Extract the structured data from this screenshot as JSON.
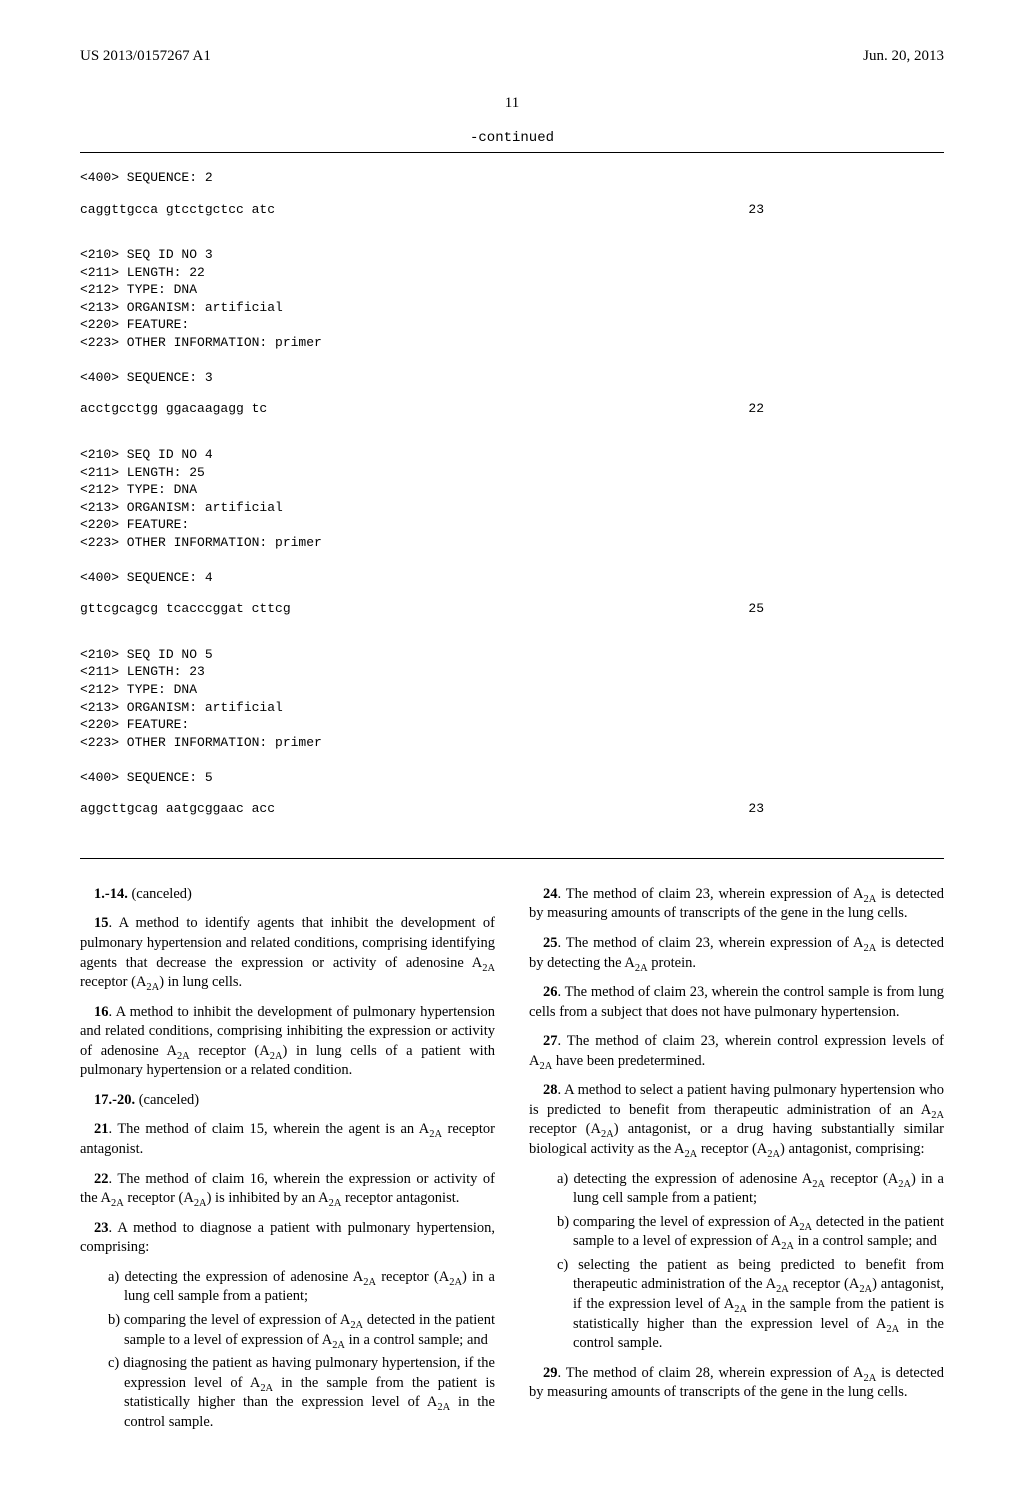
{
  "header": {
    "left": "US 2013/0157267 A1",
    "right": "Jun. 20, 2013"
  },
  "page_number": "11",
  "continued_label": "-continued",
  "sequences": [
    {
      "meta": [
        "<400> SEQUENCE: 2"
      ],
      "sequence": "caggttgcca gtcctgctcc atc",
      "length_num": "23"
    },
    {
      "meta": [
        "<210> SEQ ID NO 3",
        "<211> LENGTH: 22",
        "<212> TYPE: DNA",
        "<213> ORGANISM: artificial",
        "<220> FEATURE:",
        "<223> OTHER INFORMATION: primer",
        "",
        "<400> SEQUENCE: 3"
      ],
      "sequence": "acctgcctgg ggacaagagg tc",
      "length_num": "22"
    },
    {
      "meta": [
        "<210> SEQ ID NO 4",
        "<211> LENGTH: 25",
        "<212> TYPE: DNA",
        "<213> ORGANISM: artificial",
        "<220> FEATURE:",
        "<223> OTHER INFORMATION: primer",
        "",
        "<400> SEQUENCE: 4"
      ],
      "sequence": "gttcgcagcg tcacccggat cttcg",
      "length_num": "25"
    },
    {
      "meta": [
        "<210> SEQ ID NO 5",
        "<211> LENGTH: 23",
        "<212> TYPE: DNA",
        "<213> ORGANISM: artificial",
        "<220> FEATURE:",
        "<223> OTHER INFORMATION: primer",
        "",
        "<400> SEQUENCE: 5"
      ],
      "sequence": "aggcttgcag aatgcggaac acc",
      "length_num": "23"
    }
  ],
  "claims_left": [
    {
      "type": "claim",
      "num": "1.-14.",
      "text": " (canceled)"
    },
    {
      "type": "claim",
      "num": "15",
      "text": ". A method to identify agents that inhibit the development of pulmonary hypertension and related conditions, comprising identifying agents that decrease the expression or activity of adenosine A₂ₐ receptor (A₂ₐ) in lung cells."
    },
    {
      "type": "claim",
      "num": "16",
      "text": ". A method to inhibit the development of pulmonary hypertension and related conditions, comprising inhibiting the expression or activity of adenosine A₂ₐ receptor (A₂ₐ) in lung cells of a patient with pulmonary hypertension or a related condition."
    },
    {
      "type": "claim",
      "num": "17.-20.",
      "text": " (canceled)"
    },
    {
      "type": "claim",
      "num": "21",
      "text": ". The method of claim 15, wherein the agent is an A₂ₐ receptor antagonist."
    },
    {
      "type": "claim",
      "num": "22",
      "text": ". The method of claim 16, wherein the expression or activity of the A₂ₐ receptor (A₂ₐ) is inhibited by an A₂ₐ receptor antagonist."
    },
    {
      "type": "claim",
      "num": "23",
      "text": ". A method to diagnose a patient with pulmonary hypertension, comprising:"
    },
    {
      "type": "subitem",
      "label": "a)",
      "text": "detecting the expression of adenosine A₂ₐ receptor (A₂ₐ) in a lung cell sample from a patient;"
    },
    {
      "type": "subitem",
      "label": "b)",
      "text": "comparing the level of expression of A₂ₐ detected in the patient sample to a level of expression of A₂ₐ in a control sample; and"
    },
    {
      "type": "subitem",
      "label": "c)",
      "text": "diagnosing the patient as having pulmonary hypertension, if the expression level of A₂ₐ in the sample from the patient is statistically higher than the expression level of A₂ₐ in the control sample."
    }
  ],
  "claims_right": [
    {
      "type": "claim",
      "num": "24",
      "text": ". The method of claim 23, wherein expression of A₂ₐ is detected by measuring amounts of transcripts of the gene in the lung cells."
    },
    {
      "type": "claim",
      "num": "25",
      "text": ". The method of claim 23, wherein expression of A₂ₐ is detected by detecting the A₂ₐ protein."
    },
    {
      "type": "claim",
      "num": "26",
      "text": ". The method of claim 23, wherein the control sample is from lung cells from a subject that does not have pulmonary hypertension."
    },
    {
      "type": "claim",
      "num": "27",
      "text": ". The method of claim 23, wherein control expression levels of A₂ₐ have been predetermined."
    },
    {
      "type": "claim",
      "num": "28",
      "text": ". A method to select a patient having pulmonary hypertension who is predicted to benefit from therapeutic administration of an A₂ₐ receptor (A₂ₐ) antagonist, or a drug having substantially similar biological activity as the A₂ₐ receptor (A₂ₐ) antagonist, comprising:"
    },
    {
      "type": "subitem",
      "label": "a)",
      "text": "detecting the expression of adenosine A₂ₐ receptor (A₂ₐ) in a lung cell sample from a patient;"
    },
    {
      "type": "subitem",
      "label": "b)",
      "text": "comparing the level of expression of A₂ₐ detected in the patient sample to a level of expression of A₂ₐ in a control sample; and"
    },
    {
      "type": "subitem",
      "label": "c)",
      "text": "selecting the patient as being predicted to benefit from therapeutic administration of the A₂ₐ receptor (A₂ₐ) antagonist, if the expression level of A₂ₐ in the sample from the patient is statistically higher than the expression level of A₂ₐ in the control sample."
    },
    {
      "type": "claim",
      "num": "29",
      "text": ". The method of claim 28, wherein expression of A₂ₐ is detected by measuring amounts of transcripts of the gene in the lung cells."
    }
  ]
}
